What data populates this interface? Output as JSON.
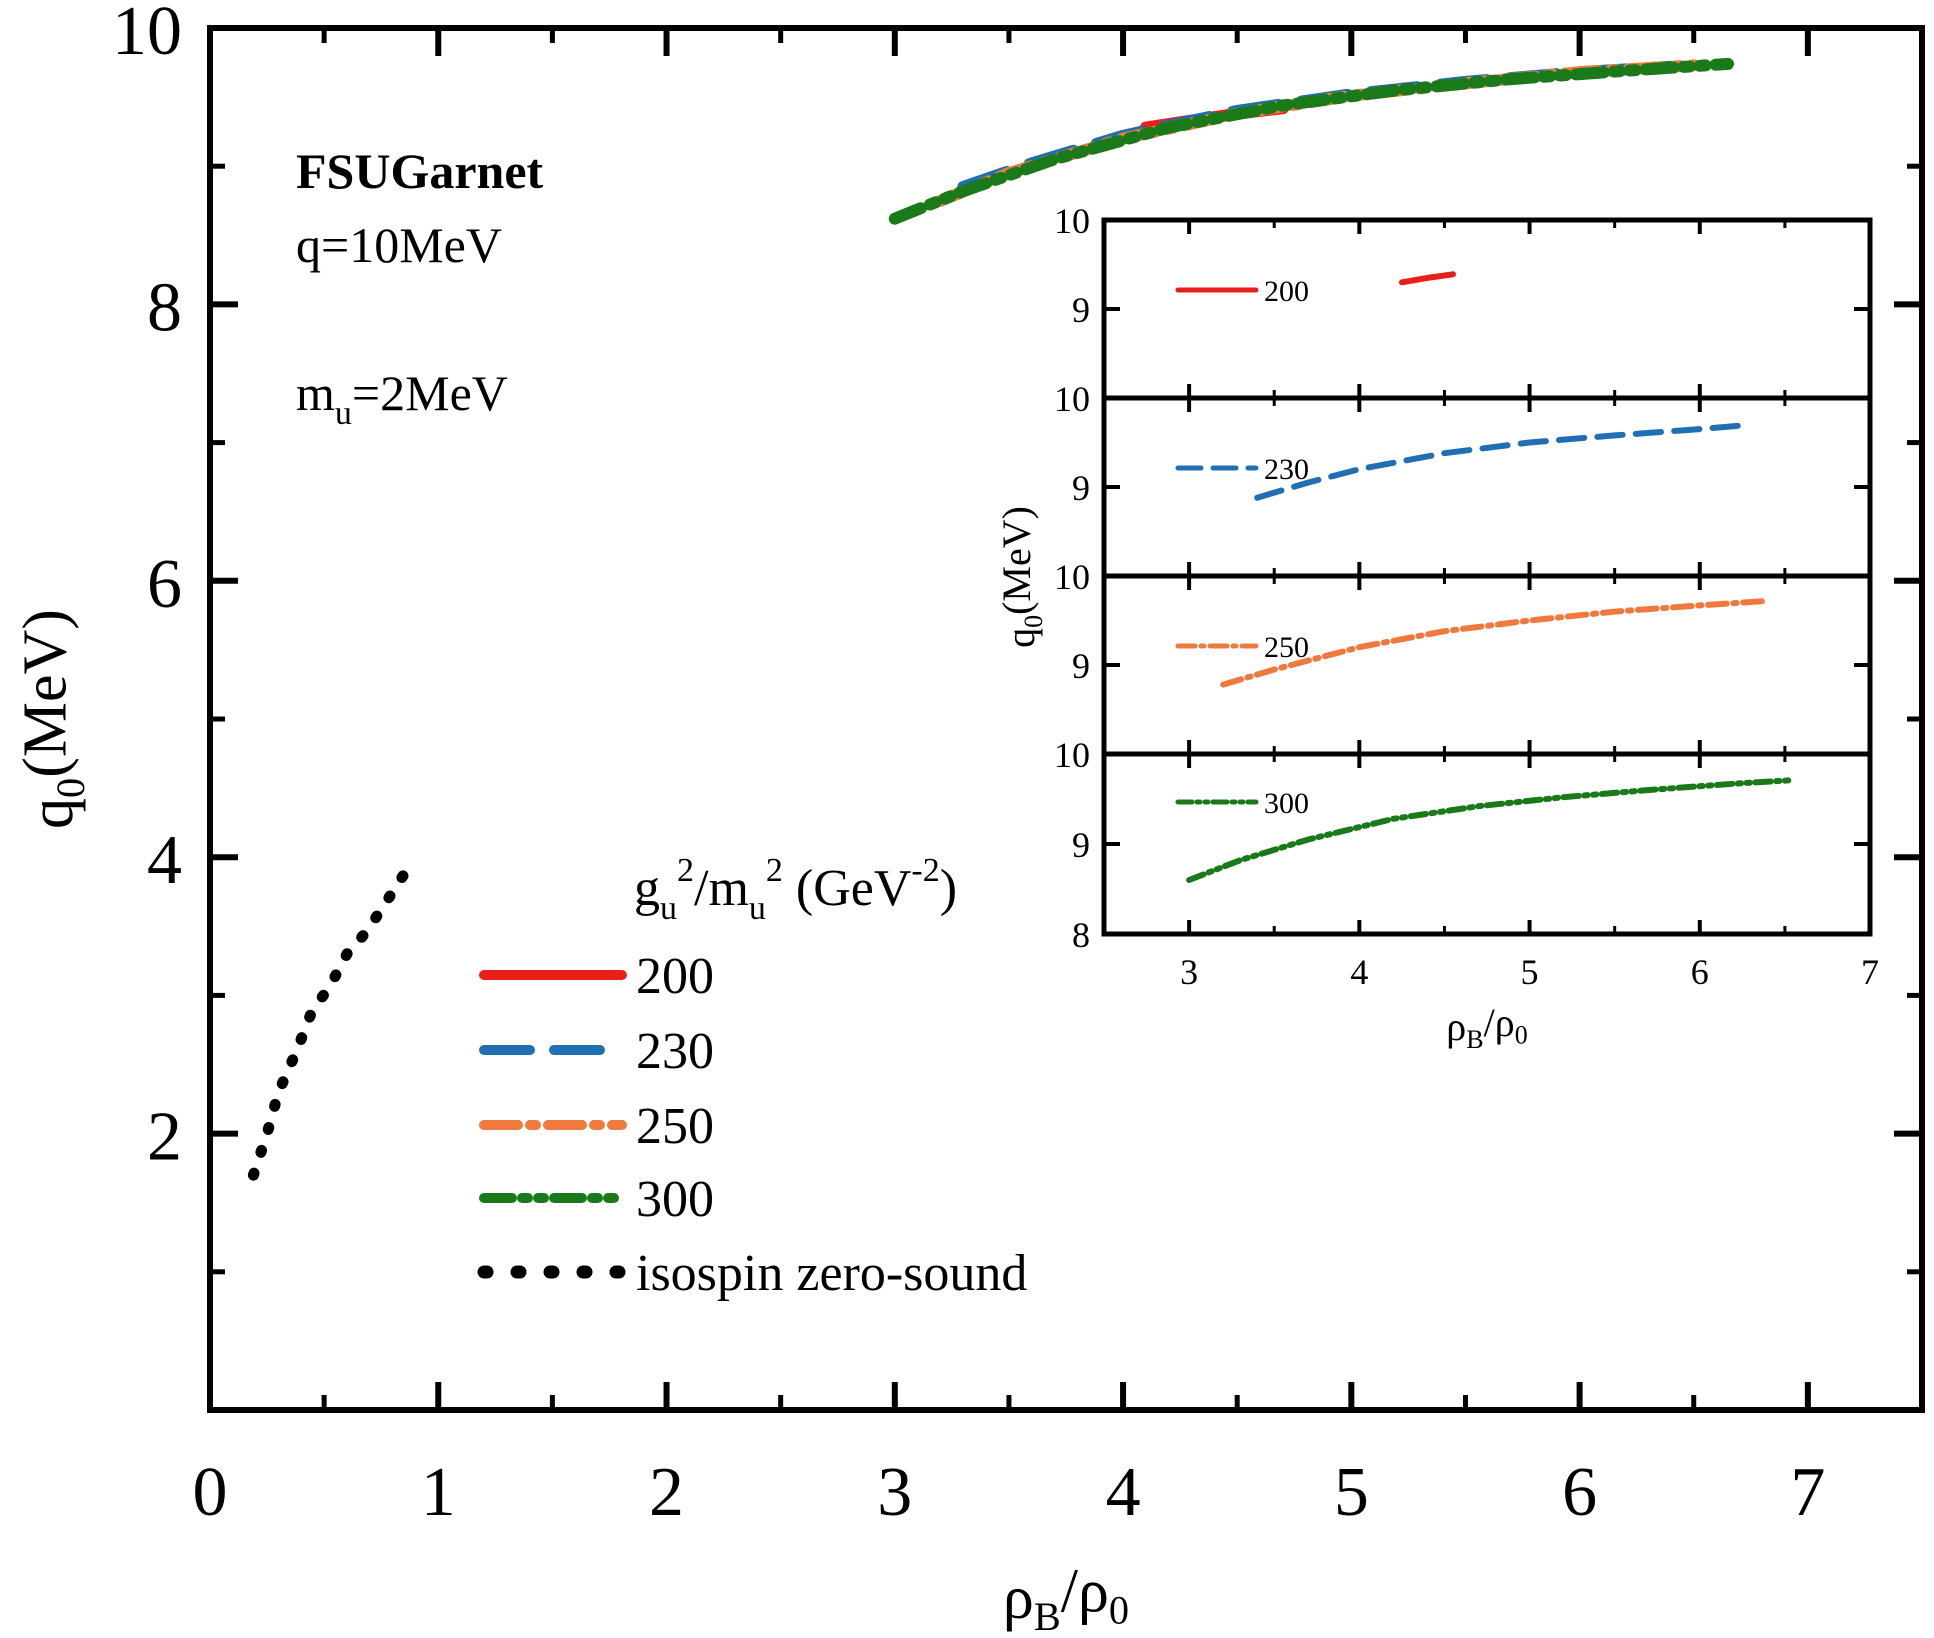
{
  "annotations": {
    "model": "FSUGarnet",
    "momentum": "q=10MeV",
    "mass_main": "m",
    "mass_sub": "u",
    "mass_rest": "=2MeV"
  },
  "legend": {
    "title": {
      "g": "g",
      "g_sub": "u",
      "g_sup": "2",
      "slash": "/m",
      "m_sub": "u",
      "m_sup": "2",
      "unit": " (GeV",
      "unit_sup": "-2",
      "close": ")"
    }
  },
  "chart_data": [
    {
      "type": "line",
      "x": {
        "main": "ρ",
        "sub": "B",
        "rest": "/ρ",
        "sub2": "0"
      },
      "y": {
        "main": "q",
        "sub": "0",
        "rest": "(MeV)"
      },
      "xlim": [
        0,
        7.5
      ],
      "ylim": [
        0,
        10
      ],
      "xticks": [
        "0",
        "1",
        "2",
        "3",
        "4",
        "5",
        "6",
        "7"
      ],
      "yticks": [
        "2",
        "4",
        "6",
        "8",
        "10"
      ],
      "legend_position": "lower-left",
      "series": [
        {
          "name": "200",
          "color": "#e8201c",
          "dash": "solid",
          "x": [
            4.1,
            4.3,
            4.5,
            4.7
          ],
          "y": [
            9.28,
            9.33,
            9.38,
            9.42
          ]
        },
        {
          "name": "230",
          "color": "#1f6fb2",
          "dash": "dash",
          "x": [
            3.3,
            3.6,
            4.0,
            4.5,
            5.0,
            5.5,
            6.0,
            6.4
          ],
          "y": [
            8.85,
            9.02,
            9.22,
            9.4,
            9.52,
            9.61,
            9.68,
            9.72
          ]
        },
        {
          "name": "250",
          "color": "#f07a3e",
          "dash": "dashdot",
          "x": [
            3.2,
            3.5,
            4.0,
            4.5,
            5.0,
            5.5,
            6.0,
            6.5
          ],
          "y": [
            8.75,
            8.95,
            9.2,
            9.38,
            9.51,
            9.6,
            9.68,
            9.73
          ]
        },
        {
          "name": "300",
          "color": "#1a7a1a",
          "dash": "dashdotdot",
          "x": [
            3.0,
            3.3,
            3.7,
            4.2,
            4.7,
            5.2,
            5.7,
            6.2,
            6.65
          ],
          "y": [
            8.62,
            8.82,
            9.05,
            9.28,
            9.44,
            9.55,
            9.63,
            9.69,
            9.74
          ]
        },
        {
          "name": "isospin zero-sound",
          "color": "#000000",
          "dash": "dot",
          "x": [
            0.19,
            0.25,
            0.3,
            0.38,
            0.45,
            0.52,
            0.6,
            0.68,
            0.75,
            0.82,
            0.89
          ],
          "y": [
            1.7,
            2.0,
            2.3,
            2.6,
            2.9,
            3.05,
            3.3,
            3.45,
            3.62,
            3.8,
            3.98
          ]
        }
      ]
    },
    {
      "type": "line",
      "x": {
        "main": "ρ",
        "sub": "B",
        "rest": "/ρ",
        "sub2": "0"
      },
      "y": {
        "main": "q",
        "sub": "0",
        "rest": "(MeV)"
      },
      "xlim": [
        2.5,
        7
      ],
      "xticks": [
        "3",
        "4",
        "5",
        "6",
        "7"
      ],
      "panels": [
        {
          "name": "200",
          "ylim": [
            8,
            10
          ],
          "yticks": [
            "9",
            "10"
          ],
          "color": "#e8201c",
          "dash": "solid",
          "x": [
            4.25,
            4.4,
            4.55
          ],
          "y": [
            9.3,
            9.35,
            9.39
          ]
        },
        {
          "name": "230",
          "ylim": [
            8,
            10
          ],
          "yticks": [
            "9",
            "10"
          ],
          "color": "#1f6fb2",
          "dash": "dash",
          "x": [
            3.4,
            3.7,
            4.0,
            4.5,
            5.0,
            5.5,
            6.0,
            6.3
          ],
          "y": [
            8.88,
            9.05,
            9.2,
            9.38,
            9.5,
            9.58,
            9.65,
            9.7
          ]
        },
        {
          "name": "250",
          "ylim": [
            8,
            10
          ],
          "yticks": [
            "9",
            "10"
          ],
          "color": "#f07a3e",
          "dash": "dashdot",
          "x": [
            3.2,
            3.5,
            4.0,
            4.5,
            5.0,
            5.5,
            6.0,
            6.4
          ],
          "y": [
            8.78,
            8.95,
            9.2,
            9.38,
            9.5,
            9.6,
            9.67,
            9.72
          ]
        },
        {
          "name": "300",
          "ylim": [
            8,
            10
          ],
          "yticks": [
            "8",
            "9",
            "10"
          ],
          "color": "#1a7a1a",
          "dash": "dashdotdot",
          "x": [
            3.0,
            3.3,
            3.7,
            4.2,
            4.7,
            5.2,
            5.7,
            6.2,
            6.55
          ],
          "y": [
            8.6,
            8.82,
            9.05,
            9.28,
            9.42,
            9.52,
            9.6,
            9.67,
            9.71
          ]
        }
      ]
    }
  ]
}
